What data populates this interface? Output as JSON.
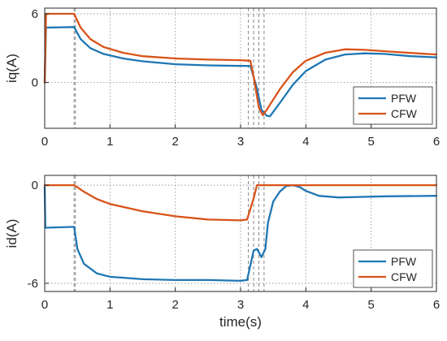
{
  "chart_data": [
    {
      "type": "line",
      "xlabel": "",
      "ylabel": "iq(A)",
      "xlim": [
        0,
        6
      ],
      "ylim": [
        -4,
        6.5
      ],
      "xticks": [
        0,
        1,
        2,
        3,
        4,
        5,
        6
      ],
      "yticks": [
        0,
        6
      ],
      "grid": true,
      "legend_position": "bottom-right",
      "vlines": [
        0.45,
        0.47,
        3.12,
        3.2,
        3.28,
        3.36
      ],
      "series": [
        {
          "name": "PFW",
          "color": "#1f77b4",
          "points": [
            [
              0,
              0
            ],
            [
              0.02,
              4.8
            ],
            [
              0.45,
              4.85
            ],
            [
              0.55,
              3.8
            ],
            [
              0.7,
              3.0
            ],
            [
              0.9,
              2.5
            ],
            [
              1.2,
              2.1
            ],
            [
              1.5,
              1.85
            ],
            [
              2.0,
              1.6
            ],
            [
              2.5,
              1.5
            ],
            [
              3.0,
              1.45
            ],
            [
              3.15,
              1.45
            ],
            [
              3.25,
              -0.5
            ],
            [
              3.32,
              -2.4
            ],
            [
              3.4,
              -2.9
            ],
            [
              3.45,
              -2.95
            ],
            [
              3.6,
              -1.8
            ],
            [
              3.8,
              -0.2
            ],
            [
              4.0,
              1.0
            ],
            [
              4.3,
              2.0
            ],
            [
              4.6,
              2.45
            ],
            [
              4.9,
              2.55
            ],
            [
              5.2,
              2.5
            ],
            [
              5.6,
              2.3
            ],
            [
              6.0,
              2.2
            ]
          ]
        },
        {
          "name": "CFW",
          "color": "#d95319",
          "points": [
            [
              0,
              0
            ],
            [
              0.02,
              6.0
            ],
            [
              0.45,
              6.0
            ],
            [
              0.55,
              4.8
            ],
            [
              0.7,
              3.8
            ],
            [
              0.9,
              3.1
            ],
            [
              1.2,
              2.6
            ],
            [
              1.5,
              2.3
            ],
            [
              2.0,
              2.1
            ],
            [
              2.5,
              2.0
            ],
            [
              3.0,
              1.95
            ],
            [
              3.15,
              1.9
            ],
            [
              3.2,
              0.5
            ],
            [
              3.28,
              -2.2
            ],
            [
              3.34,
              -2.85
            ],
            [
              3.4,
              -2.4
            ],
            [
              3.6,
              -0.6
            ],
            [
              3.8,
              0.9
            ],
            [
              4.0,
              1.9
            ],
            [
              4.3,
              2.6
            ],
            [
              4.6,
              2.9
            ],
            [
              4.9,
              2.85
            ],
            [
              5.3,
              2.7
            ],
            [
              5.7,
              2.55
            ],
            [
              6.0,
              2.45
            ]
          ]
        }
      ]
    },
    {
      "type": "line",
      "xlabel": "time(s)",
      "ylabel": "id(A)",
      "xlim": [
        0,
        6
      ],
      "ylim": [
        -6.5,
        0.6
      ],
      "xticks": [
        0,
        1,
        2,
        3,
        4,
        5,
        6
      ],
      "yticks": [
        -6,
        0
      ],
      "grid": true,
      "legend_position": "bottom-right",
      "vlines": [
        0.45,
        0.47,
        3.12,
        3.2,
        3.28,
        3.36
      ],
      "series": [
        {
          "name": "PFW",
          "color": "#1f77b4",
          "points": [
            [
              0,
              -0.1
            ],
            [
              0.01,
              -2.6
            ],
            [
              0.45,
              -2.55
            ],
            [
              0.5,
              -3.9
            ],
            [
              0.6,
              -4.8
            ],
            [
              0.8,
              -5.4
            ],
            [
              1.0,
              -5.6
            ],
            [
              1.5,
              -5.75
            ],
            [
              2.0,
              -5.8
            ],
            [
              2.5,
              -5.8
            ],
            [
              3.0,
              -5.85
            ],
            [
              3.1,
              -5.8
            ],
            [
              3.2,
              -4.0
            ],
            [
              3.25,
              -3.9
            ],
            [
              3.32,
              -4.4
            ],
            [
              3.38,
              -3.9
            ],
            [
              3.42,
              -2.3
            ],
            [
              3.5,
              -1.0
            ],
            [
              3.6,
              -0.4
            ],
            [
              3.7,
              -0.05
            ],
            [
              3.8,
              0.0
            ],
            [
              3.9,
              -0.1
            ],
            [
              4.0,
              -0.35
            ],
            [
              4.2,
              -0.65
            ],
            [
              4.5,
              -0.75
            ],
            [
              4.8,
              -0.72
            ],
            [
              5.2,
              -0.68
            ],
            [
              6.0,
              -0.65
            ]
          ]
        },
        {
          "name": "CFW",
          "color": "#d95319",
          "points": [
            [
              0,
              0.0
            ],
            [
              0.45,
              0.0
            ],
            [
              0.6,
              -0.4
            ],
            [
              0.8,
              -0.85
            ],
            [
              1.0,
              -1.15
            ],
            [
              1.5,
              -1.6
            ],
            [
              2.0,
              -1.9
            ],
            [
              2.5,
              -2.1
            ],
            [
              3.0,
              -2.15
            ],
            [
              3.1,
              -2.1
            ],
            [
              3.2,
              -0.8
            ],
            [
              3.25,
              0.0
            ],
            [
              3.5,
              0.0
            ],
            [
              4.0,
              0.0
            ],
            [
              5.0,
              0.0
            ],
            [
              6.0,
              0.0
            ]
          ]
        }
      ]
    }
  ]
}
